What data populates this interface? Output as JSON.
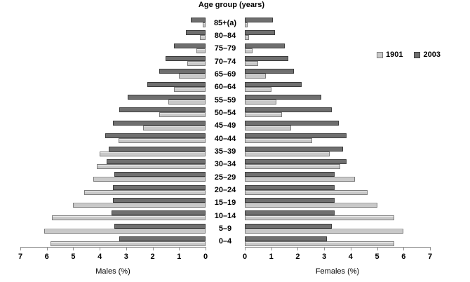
{
  "title": "Age group (years)",
  "legend": {
    "items": [
      {
        "label": "1901",
        "color": "#c9c9c9",
        "border": "#7d7d7d"
      },
      {
        "label": "2003",
        "color": "#6f6f6f",
        "border": "#3c3c3c"
      }
    ]
  },
  "axes": {
    "male_title": "Males (%)",
    "female_title": "Females (%)",
    "male_ticks": [
      "7",
      "6",
      "5",
      "4",
      "3",
      "2",
      "1",
      "0"
    ],
    "female_ticks": [
      "0",
      "1",
      "2",
      "3",
      "4",
      "5",
      "6",
      "7"
    ],
    "max_percent": 7
  },
  "chart_data": {
    "type": "bar",
    "subtype": "population-pyramid",
    "title": "Age group (years)",
    "xlabel_left": "Males (%)",
    "xlabel_right": "Females (%)",
    "x_range_percent": [
      0,
      7
    ],
    "grid": false,
    "legend_position": "right",
    "categories": [
      "85+(a)",
      "80–84",
      "75–79",
      "70–74",
      "65–69",
      "60–64",
      "55–59",
      "50–54",
      "45–49",
      "40–44",
      "35–39",
      "30–34",
      "25–29",
      "20–24",
      "15–19",
      "10–14",
      "5–9",
      "0–4"
    ],
    "series": [
      {
        "name": "1901",
        "side": "male",
        "values": [
          0.1,
          0.2,
          0.35,
          0.7,
          1.0,
          1.2,
          1.4,
          1.75,
          2.35,
          3.3,
          4.0,
          4.1,
          4.25,
          4.6,
          5.0,
          5.8,
          6.1,
          5.85
        ]
      },
      {
        "name": "2003",
        "side": "male",
        "values": [
          0.55,
          0.75,
          1.2,
          1.5,
          1.75,
          2.2,
          2.95,
          3.25,
          3.5,
          3.8,
          3.65,
          3.75,
          3.45,
          3.5,
          3.5,
          3.55,
          3.45,
          3.25
        ]
      },
      {
        "name": "1901",
        "side": "female",
        "values": [
          0.1,
          0.15,
          0.3,
          0.5,
          0.8,
          1.0,
          1.2,
          1.4,
          1.75,
          2.55,
          3.2,
          3.6,
          4.15,
          4.65,
          5.0,
          5.65,
          6.0,
          5.65
        ]
      },
      {
        "name": "2003",
        "side": "female",
        "values": [
          1.05,
          1.15,
          1.5,
          1.65,
          1.85,
          2.15,
          2.9,
          3.3,
          3.55,
          3.85,
          3.7,
          3.85,
          3.4,
          3.4,
          3.4,
          3.4,
          3.3,
          3.1
        ]
      }
    ]
  }
}
